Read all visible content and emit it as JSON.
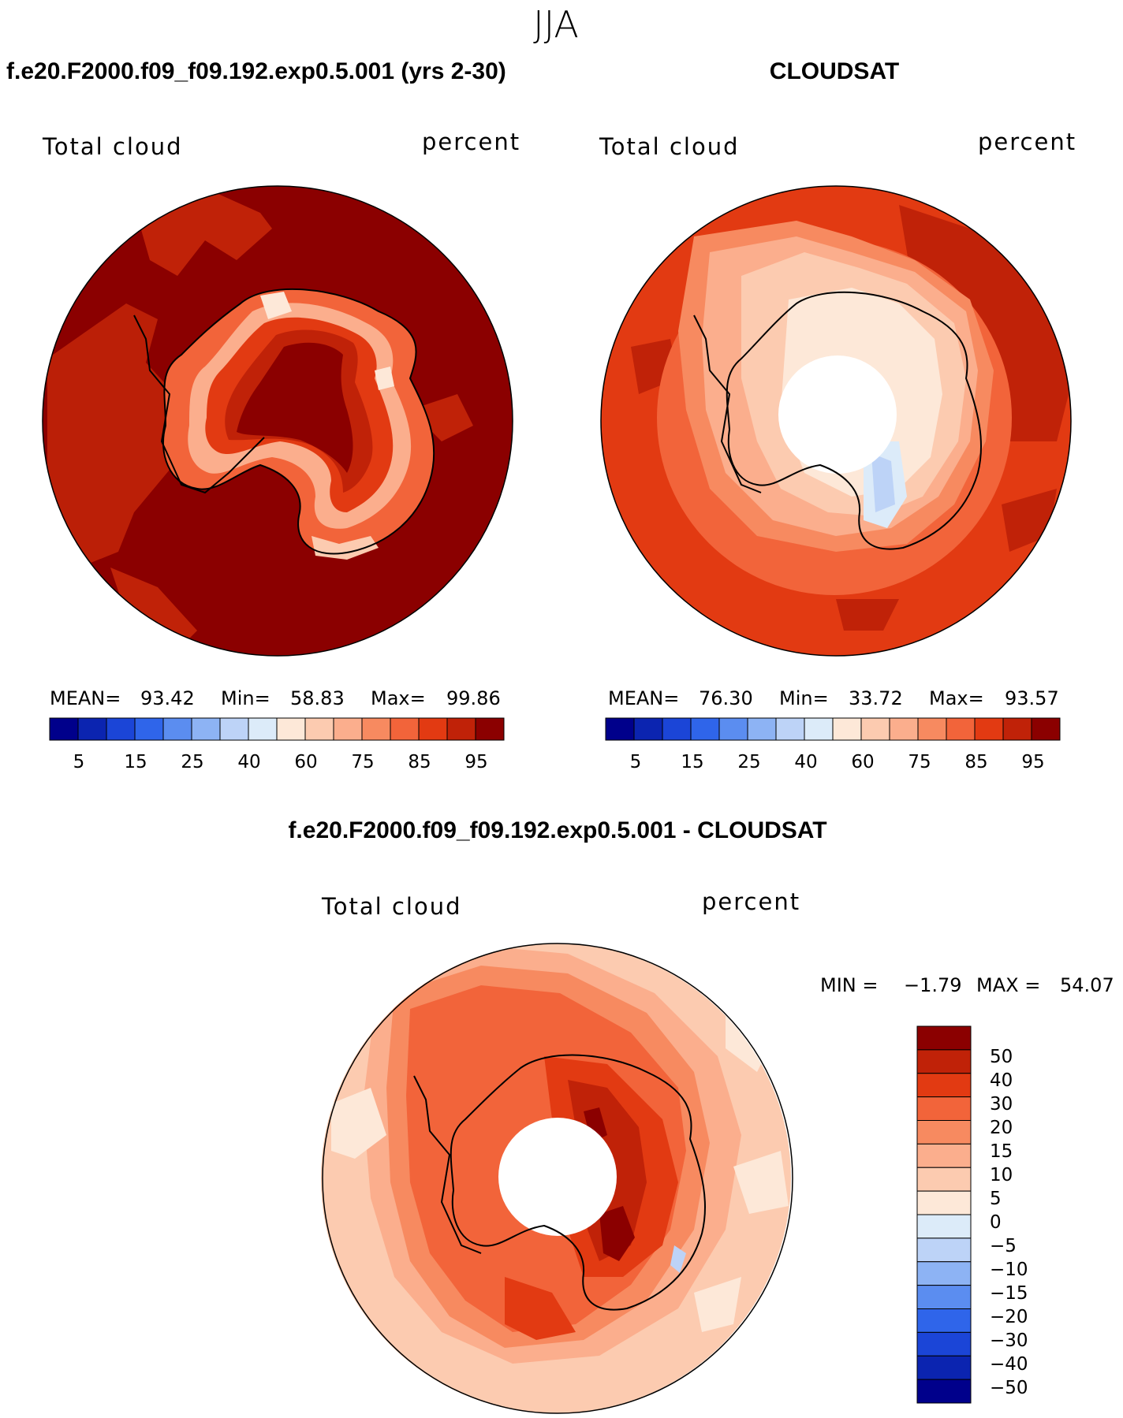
{
  "page": {
    "season": "JJA"
  },
  "colors": {
    "land_outline": "#000000",
    "background": "#ffffff",
    "abs_palette": [
      "#00008b",
      "#0b24b0",
      "#1b45d7",
      "#2f65ea",
      "#5b8df0",
      "#8db3f4",
      "#bdd3f7",
      "#dcebf9",
      "#fde8d8",
      "#fccbb0",
      "#fbae8d",
      "#f78a60",
      "#f2643a",
      "#e23a12",
      "#c02208",
      "#8b0000"
    ],
    "diff_palette": [
      "#00008b",
      "#0b24b0",
      "#1b45d7",
      "#2f65ea",
      "#5b8df0",
      "#8db3f4",
      "#bdd3f7",
      "#dcebf9",
      "#fde8d8",
      "#fccbb0",
      "#fbae8d",
      "#f78a60",
      "#f2643a",
      "#e23a12",
      "#c02208",
      "#8b0000"
    ]
  },
  "panels": {
    "model": {
      "header": "f.e20.F2000.f09_f09.192.exp0.5.001 (yrs 2-30)",
      "variable": "Total cloud",
      "units": "percent",
      "stats": {
        "mean_label": "MEAN=",
        "mean": "93.42",
        "min_label": "Min=",
        "min": "58.83",
        "max_label": "Max=",
        "max": "99.86"
      },
      "colorbar_labels": [
        "5",
        "15",
        "25",
        "40",
        "60",
        "75",
        "85",
        "95"
      ]
    },
    "obs": {
      "header": "CLOUDSAT",
      "variable": "Total cloud",
      "units": "percent",
      "stats": {
        "mean_label": "MEAN=",
        "mean": "76.30",
        "min_label": "Min=",
        "min": "33.72",
        "max_label": "Max=",
        "max": "93.57"
      },
      "colorbar_labels": [
        "5",
        "15",
        "25",
        "40",
        "60",
        "75",
        "85",
        "95"
      ]
    },
    "diff": {
      "header": "f.e20.F2000.f09_f09.192.exp0.5.001 - CLOUDSAT",
      "variable": "Total cloud",
      "units": "percent",
      "stats": {
        "min_label": "MIN =",
        "min": "−1.79",
        "max_label": "MAX =",
        "max": "54.07"
      },
      "colorbar_labels": [
        "50",
        "40",
        "30",
        "20",
        "15",
        "10",
        "5",
        "0",
        "−5",
        "−10",
        "−15",
        "−20",
        "−30",
        "−40",
        "−50"
      ]
    }
  }
}
